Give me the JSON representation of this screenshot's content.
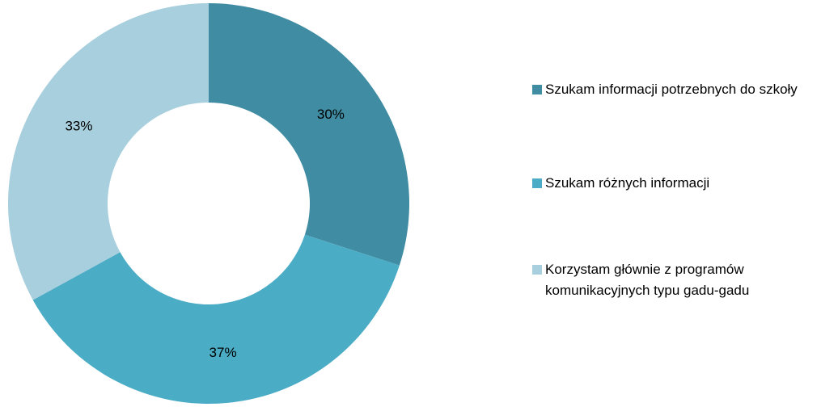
{
  "chart_data": {
    "type": "pie",
    "categories": [
      "Szukam informacji potrzebnych do szkoły",
      "Szukam różnych informacji",
      "Korzystam głównie z programów komunikacyjnych typu gadu-gadu"
    ],
    "values": [
      30,
      37,
      33
    ],
    "value_labels": [
      "30%",
      "37%",
      "33%"
    ],
    "colors": [
      "#3f8ca3",
      "#4bacc6",
      "#a8cfdd"
    ],
    "donut": true,
    "legend": "right"
  }
}
